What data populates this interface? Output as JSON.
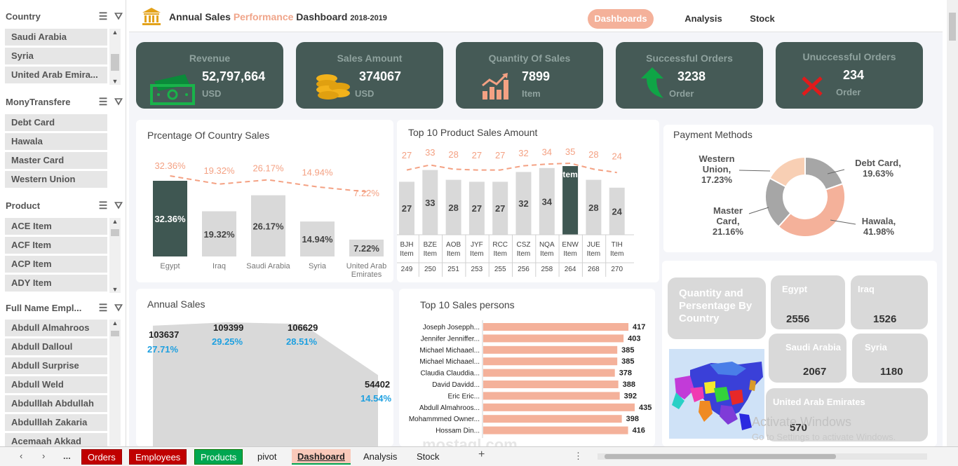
{
  "slicers": {
    "country": {
      "title": "Country",
      "items": [
        "Saudi Arabia",
        "Syria",
        "United Arab Emira..."
      ]
    },
    "money": {
      "title": "MonyTransfere",
      "items": [
        "Debt Card",
        "Hawala",
        "Master Card",
        "Western Union"
      ]
    },
    "product": {
      "title": "Product",
      "items": [
        "ACE Item",
        "ACF Item",
        "ACP Item",
        "ADY Item"
      ]
    },
    "employee": {
      "title": "Full Name Empl...",
      "items": [
        "Abdull Almahroos",
        "Abdull Dalloul",
        "Abdull Surprise",
        "Abdull Weld",
        "Abdulllah Abdullah",
        "Abdulllah Zakaria",
        "Acemaah Akkad"
      ]
    }
  },
  "header": {
    "title_pre": "Annual Sales ",
    "title_hl": "Performance",
    "title_post": " Dashboard ",
    "title_year": "2018-2019",
    "nav": [
      "Dashboards",
      "Analysis",
      "Stock"
    ]
  },
  "kpis": [
    {
      "label": "Revenue",
      "value": "52,797,664",
      "unit": "USD",
      "icon": "cash-icon"
    },
    {
      "label": "Sales Amount",
      "value": "374067",
      "unit": "USD",
      "icon": "coins-icon"
    },
    {
      "label": "Quantity Of Sales",
      "value": "7899",
      "unit": "Item",
      "icon": "growth-chart-icon"
    },
    {
      "label": "Successful Orders",
      "value": "3238",
      "unit": "Order",
      "icon": "green-arrow-icon"
    },
    {
      "label": "Unuccessful Orders",
      "value": "234",
      "unit": "Order",
      "icon": "red-x-icon"
    }
  ],
  "chart_data": [
    {
      "type": "bar",
      "title": "Prcentage Of Country Sales",
      "categories": [
        "Egypt",
        "Iraq",
        "Saudi Arabia",
        "Syria",
        "United Arab Emirates"
      ],
      "values": [
        32.36,
        19.32,
        26.17,
        14.94,
        7.22
      ],
      "labels": [
        "32.36%",
        "19.32%",
        "26.17%",
        "14.94%",
        "7.22%"
      ],
      "highlight_index": 0,
      "line_overlay": true
    },
    {
      "type": "bar",
      "title": "Top 10 Product Sales Amount",
      "categories": [
        "BJH Item",
        "BZE Item",
        "AOB Item",
        "JYF Item",
        "RCC Item",
        "CSZ Item",
        "NQA Item",
        "ENW Item",
        "JUE Item",
        "TIH Item"
      ],
      "codes": [
        "249",
        "250",
        "251",
        "253",
        "255",
        "256",
        "258",
        "264",
        "268",
        "270"
      ],
      "values": [
        27,
        33,
        28,
        27,
        27,
        32,
        34,
        35,
        28,
        24
      ],
      "bar_labels": [
        "27",
        "33",
        "28",
        "27",
        "27",
        "32",
        "34",
        "tem",
        "28",
        "24"
      ],
      "highlight_index": 7,
      "line_overlay": true
    },
    {
      "type": "pie",
      "title": "Payment Methods",
      "slices": [
        {
          "name": "Debt Card",
          "value": 19.63,
          "label": "Debt Card,",
          "pct": "19.63%",
          "color": "#a6a6a6"
        },
        {
          "name": "Hawala",
          "value": 41.98,
          "label": "Hawala,",
          "pct": "41.98%",
          "color": "#f4b19a"
        },
        {
          "name": "Master Card",
          "value": 21.16,
          "label": "Master\nCard,",
          "pct": "21.16%",
          "color": "#a6a6a6"
        },
        {
          "name": "Western Union",
          "value": 17.23,
          "label": "Western\nUnion,",
          "pct": "17.23%",
          "color": "#f8cfb4"
        }
      ]
    },
    {
      "type": "area",
      "title": "Annual Sales",
      "values": [
        103637,
        109399,
        106629,
        54402
      ],
      "value_labels": [
        "103637",
        "109399",
        "106629",
        "54402"
      ],
      "pct_labels": [
        "27.71%",
        "29.25%",
        "28.51%",
        "14.54%"
      ]
    },
    {
      "type": "bar",
      "orientation": "horizontal",
      "title": "Top 10  Sales persons",
      "categories": [
        "Joseph Josepph...",
        "Jennifer Jenniffer...",
        "Michael Michaael...",
        "Michael Michaael...",
        "Claudia Clauddia...",
        "David Davidd...",
        "Eric Eric...",
        "Abdull Almahroos...",
        "Mohammmed Owner...",
        "Hossam Din..."
      ],
      "values": [
        417,
        403,
        385,
        385,
        378,
        388,
        392,
        435,
        398,
        416
      ]
    }
  ],
  "country_card": {
    "title": "Quantity and Persentage By Country",
    "tiles": [
      {
        "name": "Egypt",
        "value": "2556"
      },
      {
        "name": "Iraq",
        "value": "1526"
      },
      {
        "name": "Saudi Arabia",
        "value": "2067"
      },
      {
        "name": "Syria",
        "value": "1180"
      },
      {
        "name": "United Arab Emirates",
        "value": "570"
      }
    ]
  },
  "overlay": {
    "activate_title": "Activate Windows",
    "activate_sub": "Go to Settings to activate Windows.",
    "brand": "mostaql.com"
  },
  "tabs": {
    "sheets": [
      "Orders",
      "Employees",
      "Products",
      "pivot",
      "Dashboard",
      "Analysis",
      "Stock"
    ],
    "add": "+",
    "more": "..."
  }
}
